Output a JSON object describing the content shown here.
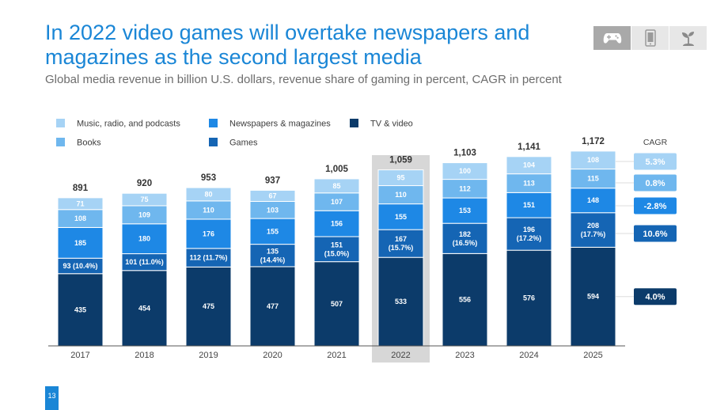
{
  "title": "In 2022 video games will overtake newspapers and magazines as the second largest media",
  "subtitle": "Global media revenue in billion U.S. dollars, revenue share of gaming in percent, CAGR in percent",
  "page_number": "13",
  "icons": [
    {
      "name": "gamepad-icon",
      "active": true
    },
    {
      "name": "tablet-icon",
      "active": false
    },
    {
      "name": "plant-icon",
      "active": false
    }
  ],
  "colors": {
    "title": "#1a86d6",
    "music": "#a6d3f5",
    "books": "#6fb7ee",
    "newspapers": "#1e88e5",
    "games": "#1565b4",
    "tv": "#0c3b6a",
    "highlight": "#d7d7d7"
  },
  "chart_data": {
    "type": "bar",
    "stacked": true,
    "categories": [
      "2017",
      "2018",
      "2019",
      "2020",
      "2021",
      "2022",
      "2023",
      "2024",
      "2025"
    ],
    "highlight_category": "2022",
    "series": [
      {
        "name": "TV & video",
        "key": "tv",
        "values": [
          435,
          454,
          475,
          477,
          507,
          533,
          556,
          576,
          594
        ],
        "labels": [
          "435",
          "454",
          "475",
          "477",
          "507",
          "533",
          "556",
          "576",
          "594"
        ]
      },
      {
        "name": "Games",
        "key": "games",
        "values": [
          93,
          101,
          112,
          135,
          151,
          167,
          182,
          196,
          208
        ],
        "labels": [
          "93 (10.4%)",
          "101 (11.0%)",
          "112 (11.7%)",
          "135\n(14.4%)",
          "151\n(15.0%)",
          "167\n(15.7%)",
          "182\n(16.5%)",
          "196\n(17.2%)",
          "208\n(17.7%)"
        ]
      },
      {
        "name": "Newspapers & magazines",
        "key": "newspapers",
        "values": [
          185,
          180,
          176,
          155,
          156,
          155,
          153,
          151,
          148
        ],
        "labels": [
          "185",
          "180",
          "176",
          "155",
          "156",
          "155",
          "153",
          "151",
          "148"
        ]
      },
      {
        "name": "Books",
        "key": "books",
        "values": [
          108,
          109,
          110,
          103,
          107,
          110,
          112,
          113,
          115
        ],
        "labels": [
          "108",
          "109",
          "110",
          "103",
          "107",
          "110",
          "112",
          "113",
          "115"
        ]
      },
      {
        "name": "Music, radio, and podcasts",
        "key": "music",
        "values": [
          71,
          75,
          80,
          67,
          85,
          95,
          100,
          104,
          108
        ],
        "labels": [
          "71",
          "75",
          "80",
          "67",
          "85",
          "95",
          "100",
          "104",
          "108"
        ]
      }
    ],
    "totals": [
      "891",
      "920",
      "953",
      "937",
      "1,005",
      "1,059",
      "1,103",
      "1,141",
      "1,172"
    ],
    "legend": [
      {
        "label": "Music, radio, and podcasts",
        "key": "music"
      },
      {
        "label": "Books",
        "key": "books"
      },
      {
        "label": "Newspapers & magazines",
        "key": "newspapers"
      },
      {
        "label": "Games",
        "key": "games"
      },
      {
        "label": "TV & video",
        "key": "tv"
      }
    ],
    "cagr_title": "CAGR",
    "cagr": [
      {
        "series": "music",
        "label": "5.3%"
      },
      {
        "series": "books",
        "label": "0.8%"
      },
      {
        "series": "newspapers",
        "label": "-2.8%"
      },
      {
        "series": "games",
        "label": "10.6%"
      },
      {
        "series": "tv",
        "label": "4.0%"
      }
    ],
    "ylabel": "",
    "xlabel": "",
    "ylim": [
      0,
      1250
    ]
  }
}
